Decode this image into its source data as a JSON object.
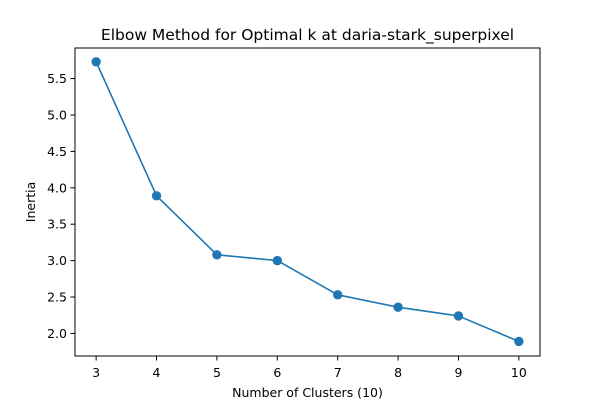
{
  "chart_data": {
    "type": "line",
    "title": "Elbow Method for Optimal k at daria-stark_superpixel",
    "xlabel": "Number of Clusters (10)",
    "ylabel": "Inertia",
    "x": [
      3,
      4,
      5,
      6,
      7,
      8,
      9,
      10
    ],
    "series": [
      {
        "values": [
          5.73,
          3.89,
          3.08,
          3.0,
          2.53,
          2.36,
          2.24,
          1.89
        ],
        "color": "#1f77b4",
        "marker": "circle"
      }
    ],
    "xticks": [
      "3",
      "4",
      "5",
      "6",
      "7",
      "8",
      "9",
      "10"
    ],
    "yticks": [
      "2.0",
      "2.5",
      "3.0",
      "3.5",
      "4.0",
      "4.5",
      "5.0",
      "5.5"
    ],
    "xlim": [
      2.65,
      10.35
    ],
    "ylim": [
      1.69,
      5.92
    ],
    "grid": false,
    "legend": "none"
  }
}
